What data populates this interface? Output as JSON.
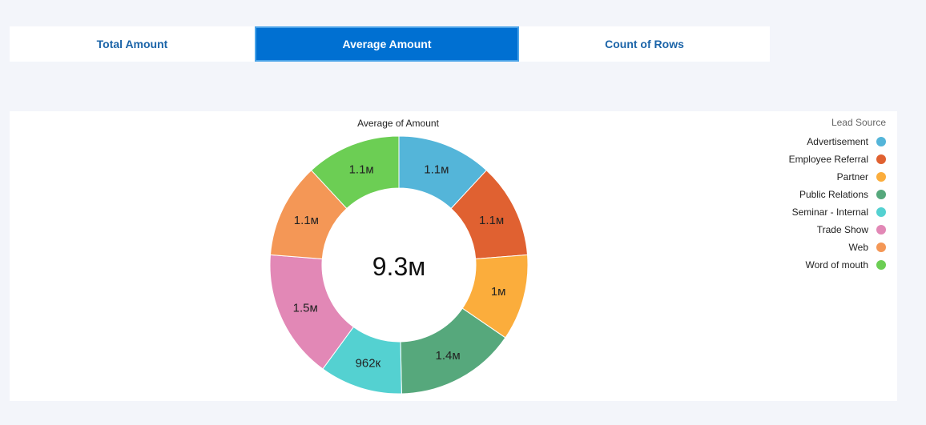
{
  "tabs": [
    {
      "label": "Total Amount",
      "active": false
    },
    {
      "label": "Average Amount",
      "active": true
    },
    {
      "label": "Count of Rows",
      "active": false
    }
  ],
  "colors": {
    "tab_active_bg": "#0070d2",
    "tab_text": "#1b64a8"
  },
  "chart_data": {
    "type": "pie",
    "title": "Average of Amount",
    "center_label": "9.3м",
    "legend": {
      "title": "Lead Source",
      "placement": "top-right"
    },
    "series": [
      {
        "name": "Advertisement",
        "value": 1.1,
        "label": "1.1м",
        "color": "#54b5d9"
      },
      {
        "name": "Employee Referral",
        "value": 1.1,
        "label": "1.1м",
        "color": "#e06131"
      },
      {
        "name": "Partner",
        "value": 1.0,
        "label": "1м",
        "color": "#fbad3c"
      },
      {
        "name": "Public Relations",
        "value": 1.4,
        "label": "1.4м",
        "color": "#56a87c"
      },
      {
        "name": "Seminar - Internal",
        "value": 0.962,
        "label": "962к",
        "color": "#54d1d1"
      },
      {
        "name": "Trade Show",
        "value": 1.5,
        "label": "1.5м",
        "color": "#e288b6"
      },
      {
        "name": "Web",
        "value": 1.1,
        "label": "1.1м",
        "color": "#f49756"
      },
      {
        "name": "Word of mouth",
        "value": 1.1,
        "label": "1.1м",
        "color": "#6cce54"
      }
    ]
  }
}
